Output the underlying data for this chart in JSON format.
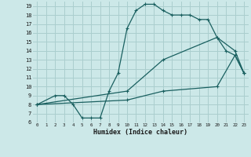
{
  "xlabel": "Humidex (Indice chaleur)",
  "bg_color": "#cce8e8",
  "grid_color": "#aacece",
  "line_color": "#1a6060",
  "xlim": [
    -0.5,
    23.5
  ],
  "ylim": [
    6,
    19.5
  ],
  "xticks": [
    0,
    1,
    2,
    3,
    4,
    5,
    6,
    7,
    8,
    9,
    10,
    11,
    12,
    13,
    14,
    15,
    16,
    17,
    18,
    19,
    20,
    21,
    22,
    23
  ],
  "yticks": [
    6,
    7,
    8,
    9,
    10,
    11,
    12,
    13,
    14,
    15,
    16,
    17,
    18,
    19
  ],
  "line1_x": [
    0,
    2,
    3,
    4,
    5,
    6,
    7,
    8,
    9,
    10,
    11,
    12,
    13,
    14,
    15,
    16,
    17,
    18,
    19,
    20,
    21,
    22,
    23
  ],
  "line1_y": [
    8,
    9,
    9,
    8,
    6.5,
    6.5,
    6.5,
    9.5,
    11.5,
    16.5,
    18.5,
    19.2,
    19.2,
    18.5,
    18,
    18,
    18,
    17.5,
    17.5,
    15.5,
    14,
    13.5,
    11.5
  ],
  "line2_x": [
    0,
    10,
    14,
    20,
    22,
    23
  ],
  "line2_y": [
    8,
    9.5,
    13,
    15.5,
    14,
    11.5
  ],
  "line3_x": [
    0,
    10,
    14,
    20,
    22,
    23
  ],
  "line3_y": [
    8,
    8.5,
    9.5,
    10,
    13.5,
    11.5
  ]
}
